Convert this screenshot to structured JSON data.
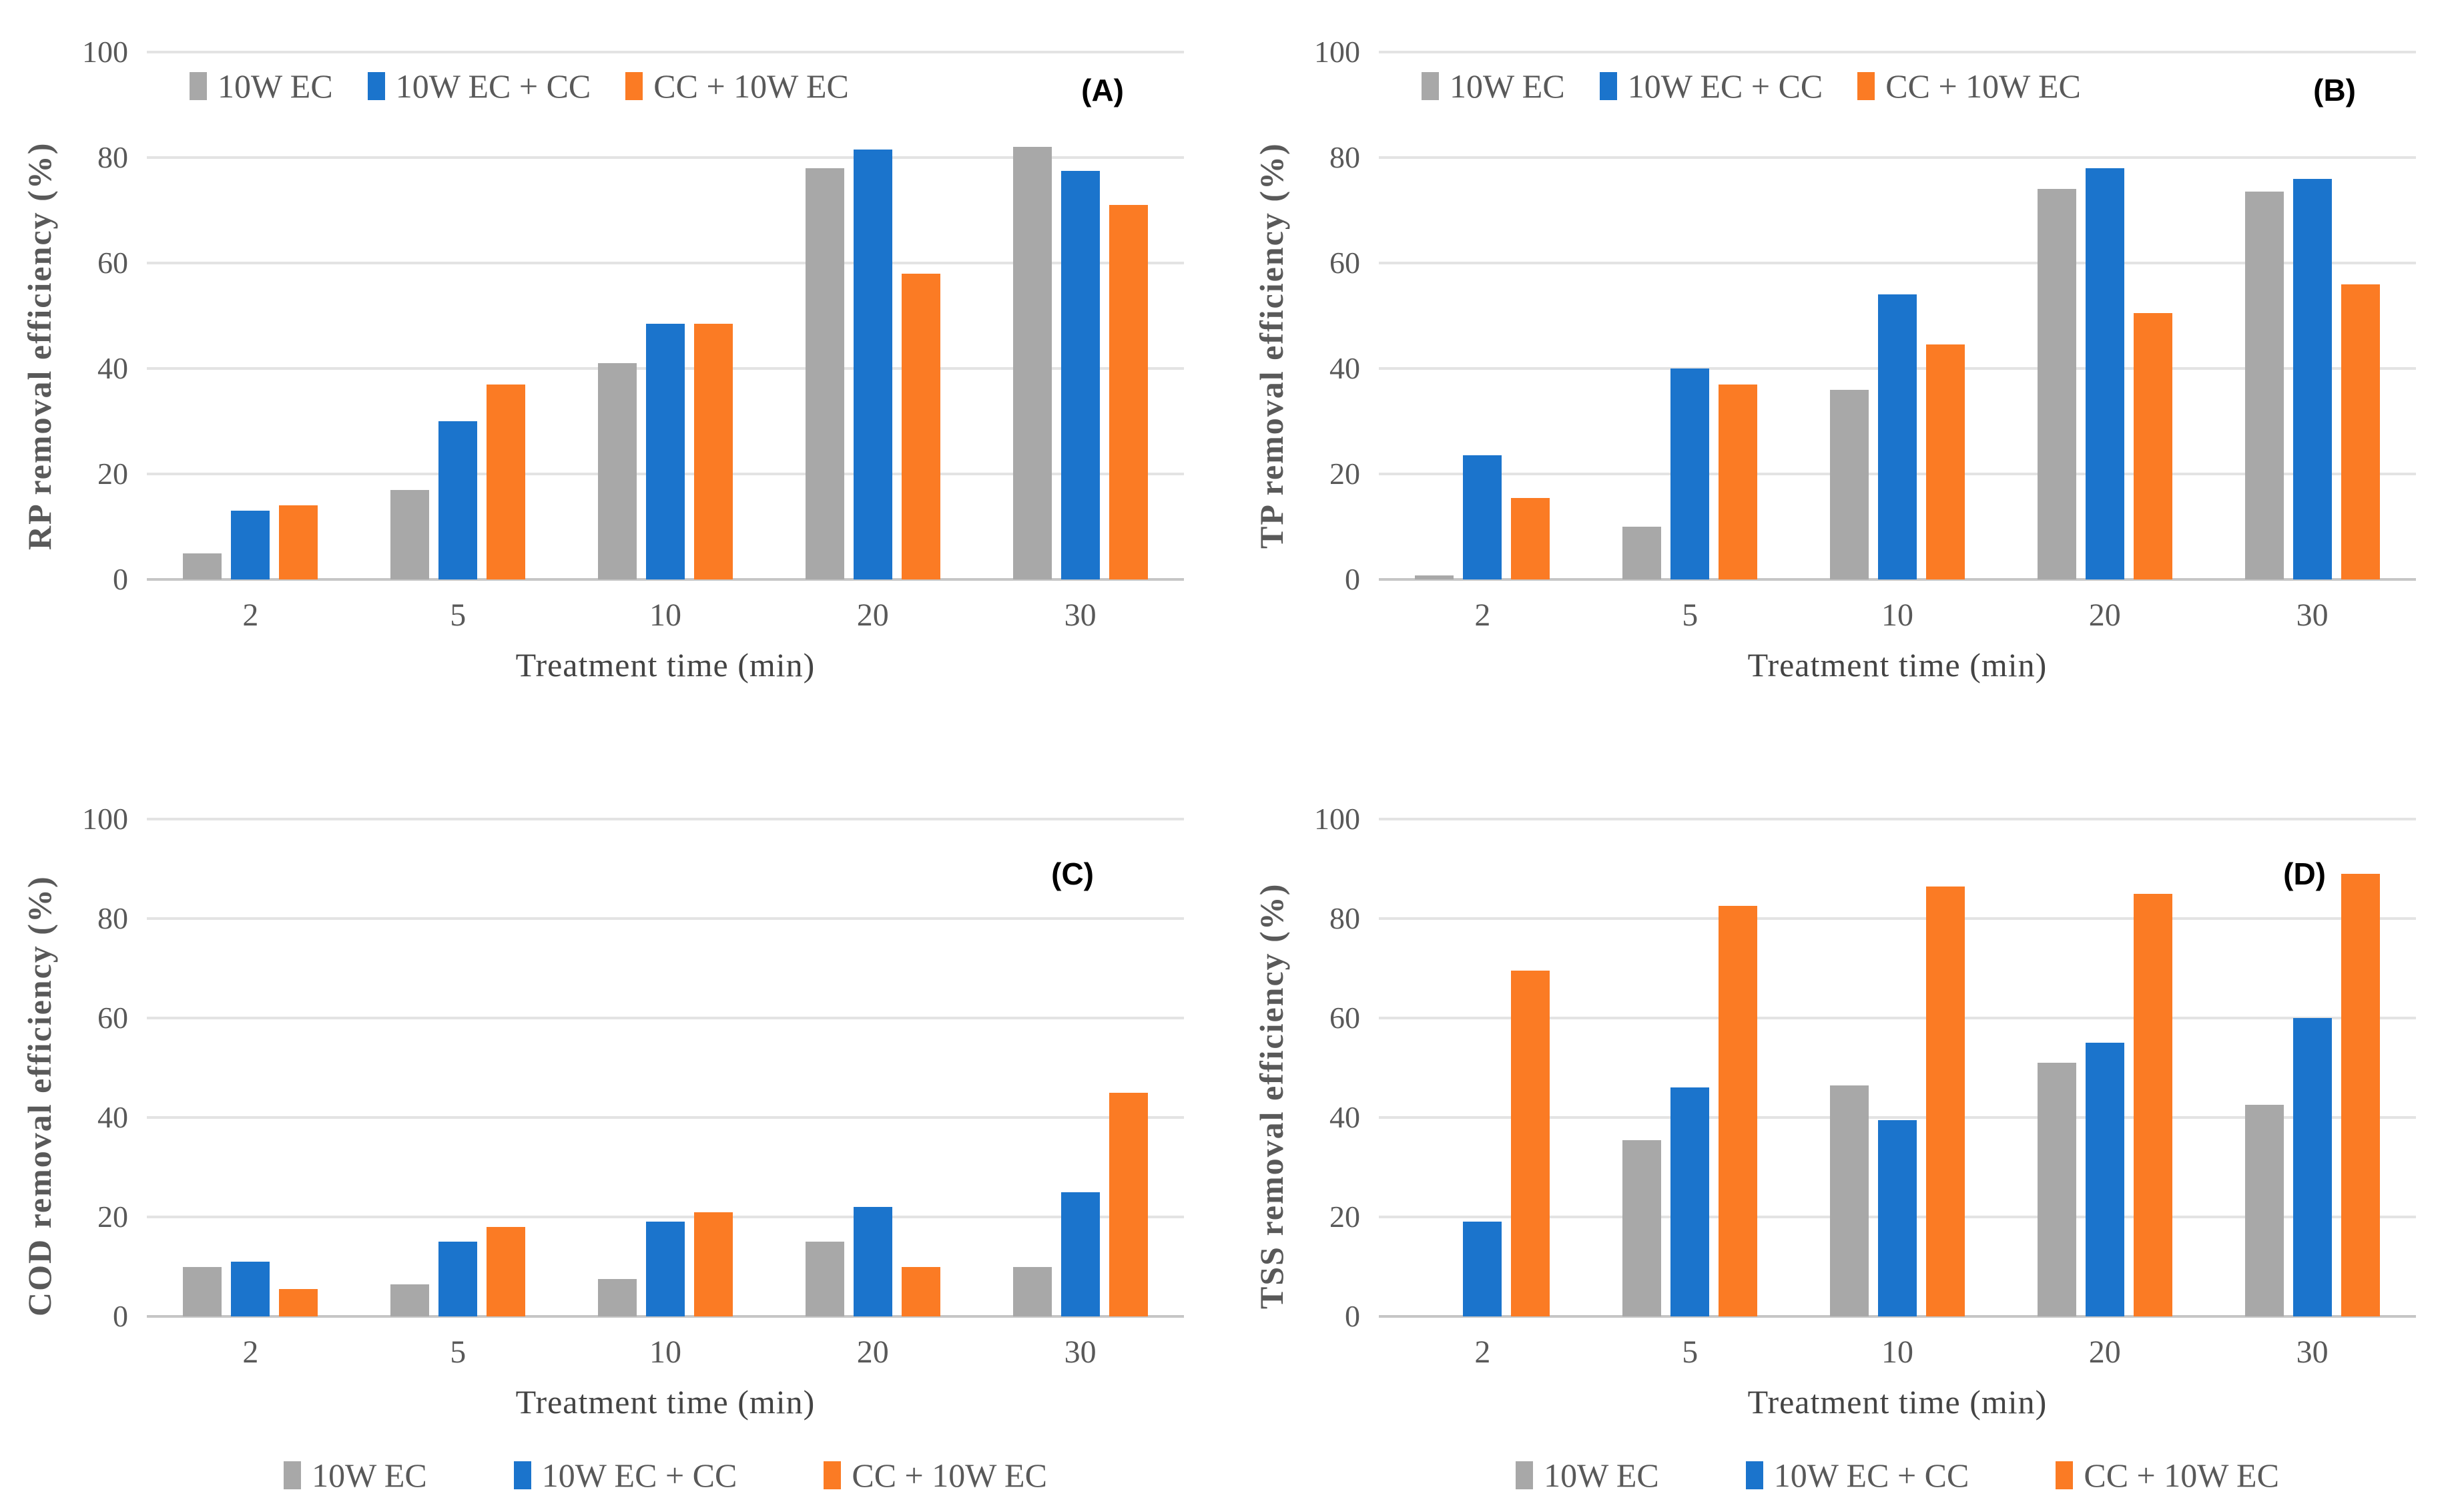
{
  "colors": {
    "series_gray": "#a8a8a8",
    "series_blue": "#1b74cc",
    "series_orange": "#fb7b24",
    "gridline": "#e3e3e3",
    "axis_line": "#c6c6c6",
    "tick_text": "#595959"
  },
  "x_axis_title": "Treatment time (min)",
  "chart_data": [
    {
      "type": "bar",
      "panel_label": "(A)",
      "ylabel": "RP removal efficiency (%)",
      "xlabel": "Treatment time (min)",
      "categories": [
        "2",
        "5",
        "10",
        "20",
        "30"
      ],
      "ylim": [
        0,
        100
      ],
      "yticks": [
        0,
        20,
        40,
        60,
        80,
        100
      ],
      "grid": true,
      "legend_position": "top-inside",
      "series": [
        {
          "name": "10W EC",
          "color": "#a8a8a8",
          "values": [
            5,
            17,
            41,
            78,
            82
          ]
        },
        {
          "name": "10W EC + CC",
          "color": "#1b74cc",
          "values": [
            13,
            30,
            48.5,
            81.5,
            77.5
          ]
        },
        {
          "name": "CC + 10W EC",
          "color": "#fb7b24",
          "values": [
            14,
            37,
            48.5,
            58,
            71
          ]
        }
      ]
    },
    {
      "type": "bar",
      "panel_label": "(B)",
      "ylabel": "TP removal efficiency (%)",
      "xlabel": "Treatment time (min)",
      "categories": [
        "2",
        "5",
        "10",
        "20",
        "30"
      ],
      "ylim": [
        0,
        100
      ],
      "yticks": [
        0,
        20,
        40,
        60,
        80,
        100
      ],
      "grid": true,
      "legend_position": "top-inside",
      "series": [
        {
          "name": "10W EC",
          "color": "#a8a8a8",
          "values": [
            0.7,
            10,
            36,
            74,
            73.5
          ]
        },
        {
          "name": "10W EC + CC",
          "color": "#1b74cc",
          "values": [
            23.5,
            40,
            54,
            78,
            76
          ]
        },
        {
          "name": "CC + 10W EC",
          "color": "#fb7b24",
          "values": [
            15.5,
            37,
            44.5,
            50.5,
            56
          ]
        }
      ]
    },
    {
      "type": "bar",
      "panel_label": "(C)",
      "ylabel": "COD removal efficiency (%)",
      "xlabel": "Treatment time (min)",
      "categories": [
        "2",
        "5",
        "10",
        "20",
        "30"
      ],
      "ylim": [
        0,
        100
      ],
      "yticks": [
        0,
        20,
        40,
        60,
        80,
        100
      ],
      "grid": true,
      "legend_position": "bottom",
      "series": [
        {
          "name": "10W EC",
          "color": "#a8a8a8",
          "values": [
            10,
            6.5,
            7.5,
            15,
            10
          ]
        },
        {
          "name": "10W EC + CC",
          "color": "#1b74cc",
          "values": [
            11,
            15,
            19,
            22,
            25
          ]
        },
        {
          "name": "CC + 10W EC",
          "color": "#fb7b24",
          "values": [
            5.5,
            18,
            21,
            10,
            45
          ]
        }
      ]
    },
    {
      "type": "bar",
      "panel_label": "(D)",
      "ylabel": "TSS removal efficiency (%)",
      "xlabel": "Treatment time (min)",
      "categories": [
        "2",
        "5",
        "10",
        "20",
        "30"
      ],
      "ylim": [
        0,
        100
      ],
      "yticks": [
        0,
        20,
        40,
        60,
        80,
        100
      ],
      "grid": true,
      "legend_position": "bottom",
      "series": [
        {
          "name": "10W EC",
          "color": "#a8a8a8",
          "values": [
            0,
            35.5,
            46.5,
            51,
            42.5
          ]
        },
        {
          "name": "10W EC + CC",
          "color": "#1b74cc",
          "values": [
            19,
            46,
            39.5,
            55,
            60
          ]
        },
        {
          "name": "CC + 10W EC",
          "color": "#fb7b24",
          "values": [
            69.5,
            82.5,
            86.5,
            85,
            89
          ]
        }
      ]
    }
  ]
}
